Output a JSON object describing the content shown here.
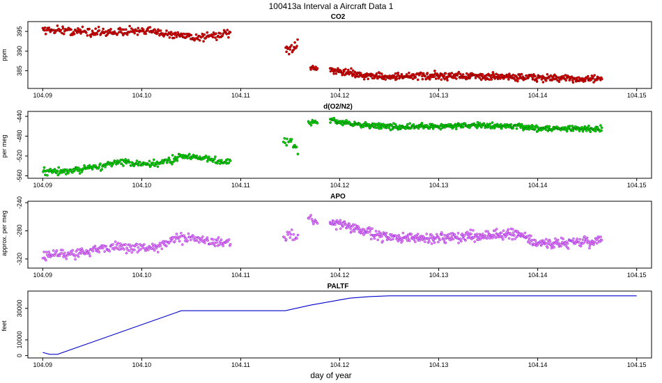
{
  "page_title": "100413a   Interval a Aircraft Data 1",
  "x_axis_label": "day of year",
  "chart_data": [
    {
      "type": "scatter",
      "title": "CO2",
      "ylabel": "ppm",
      "color": "#e00000",
      "edge_color": "#700000",
      "xlim": [
        104.0885,
        104.1515
      ],
      "ylim": [
        380.5,
        397.5
      ],
      "xticks": [
        104.09,
        104.1,
        104.11,
        104.12,
        104.13,
        104.14,
        104.15
      ],
      "xtick_labels": [
        "104.09",
        "104.10",
        "104.11",
        "104.12",
        "104.13",
        "104.14",
        "104.15"
      ],
      "yticks": [
        385,
        390,
        395
      ],
      "ytick_labels": [
        "385",
        "390",
        "395"
      ],
      "segments": [
        {
          "x": [
            104.09,
            104.093,
            104.096,
            104.099,
            104.102,
            104.104,
            104.106,
            104.108,
            104.109
          ],
          "y": [
            395.5,
            395.2,
            394.8,
            395.0,
            394.8,
            394.0,
            393.5,
            394.3,
            394.6
          ],
          "noise": 0.6,
          "n": 260
        },
        {
          "x": [
            104.1145,
            104.1152,
            104.1158
          ],
          "y": [
            389.8,
            390.5,
            392.0
          ],
          "noise": 0.5,
          "n": 18
        },
        {
          "x": [
            104.117,
            104.1178
          ],
          "y": [
            385.8,
            385.3
          ],
          "noise": 0.4,
          "n": 12
        },
        {
          "x": [
            104.119,
            104.121,
            104.122,
            104.124,
            104.13,
            104.138,
            104.144,
            104.1465
          ],
          "y": [
            385.0,
            384.6,
            383.9,
            383.5,
            383.7,
            383.4,
            382.9,
            382.8
          ],
          "noise": 0.5,
          "n": 480
        }
      ]
    },
    {
      "type": "scatter",
      "title": "d(O2/N2)",
      "ylabel": "per meg",
      "color": "#00e000",
      "edge_color": "#006000",
      "xlim": [
        104.0885,
        104.1515
      ],
      "ylim": [
        -565,
        -430
      ],
      "xticks": [
        104.09,
        104.1,
        104.11,
        104.12,
        104.13,
        104.14,
        104.15
      ],
      "xtick_labels": [
        "104.09",
        "104.10",
        "104.11",
        "104.12",
        "104.13",
        "104.14",
        "104.15"
      ],
      "yticks": [
        -560,
        -520,
        -480,
        -440
      ],
      "ytick_labels": [
        "-560",
        "-520",
        "-480",
        "-440"
      ],
      "segments": [
        {
          "x": [
            104.09,
            104.093,
            104.096,
            104.098,
            104.1,
            104.102,
            104.104,
            104.106,
            104.108,
            104.109
          ],
          "y": [
            -553,
            -550,
            -540,
            -532,
            -538,
            -535,
            -520,
            -522,
            -532,
            -528
          ],
          "noise": 4,
          "n": 260
        },
        {
          "x": [
            104.1143,
            104.115,
            104.1158
          ],
          "y": [
            -495,
            -490,
            -510
          ],
          "noise": 5,
          "n": 16
        },
        {
          "x": [
            104.1168,
            104.1178
          ],
          "y": [
            -450,
            -455
          ],
          "noise": 3,
          "n": 12
        },
        {
          "x": [
            104.119,
            104.121,
            104.126,
            104.133,
            104.138,
            104.14,
            104.1465
          ],
          "y": [
            -447,
            -455,
            -462,
            -458,
            -460,
            -464,
            -465
          ],
          "noise": 3,
          "n": 480
        }
      ]
    },
    {
      "type": "scatter",
      "title": "APO",
      "ylabel": "approx. per meg",
      "color": "#ee82ee",
      "edge_color": "#8a2be2",
      "xlim": [
        104.0885,
        104.1515
      ],
      "ylim": [
        -333,
        -238
      ],
      "xticks": [
        104.09,
        104.1,
        104.11,
        104.12,
        104.13,
        104.14,
        104.15
      ],
      "xtick_labels": [
        "104.09",
        "104.10",
        "104.11",
        "104.12",
        "104.13",
        "104.14",
        "104.15"
      ],
      "yticks": [
        -320,
        -280,
        -240
      ],
      "ytick_labels": [
        "-320",
        "-280",
        "-240"
      ],
      "segments": [
        {
          "x": [
            104.09,
            104.093,
            104.096,
            104.098,
            104.1,
            104.102,
            104.104,
            104.106,
            104.108,
            104.109
          ],
          "y": [
            -315,
            -313,
            -305,
            -302,
            -306,
            -300,
            -290,
            -290,
            -300,
            -295
          ],
          "noise": 4,
          "n": 260
        },
        {
          "x": [
            104.1143,
            104.115,
            104.1158
          ],
          "y": [
            -288,
            -285,
            -290
          ],
          "noise": 4,
          "n": 16
        },
        {
          "x": [
            104.1168,
            104.1178
          ],
          "y": [
            -262,
            -268
          ],
          "noise": 3,
          "n": 12
        },
        {
          "x": [
            104.119,
            104.121,
            104.125,
            104.13,
            104.138,
            104.14,
            104.1465
          ],
          "y": [
            -265,
            -275,
            -290,
            -290,
            -284,
            -298,
            -295
          ],
          "noise": 4,
          "n": 480
        }
      ]
    },
    {
      "type": "line",
      "title": "PALTF",
      "ylabel": "feet",
      "color": "#0000cc",
      "xlim": [
        104.0885,
        104.1515
      ],
      "ylim": [
        -1500,
        41000
      ],
      "xticks": [
        104.09,
        104.1,
        104.11,
        104.12,
        104.13,
        104.14,
        104.15
      ],
      "xtick_labels": [
        "104.09",
        "104.10",
        "104.11",
        "104.12",
        "104.13",
        "104.14",
        "104.15"
      ],
      "yticks": [
        0,
        10000,
        30000
      ],
      "ytick_labels": [
        "0",
        "10000",
        "30000"
      ],
      "x": [
        104.09,
        104.0907,
        104.0915,
        104.104,
        104.1145,
        104.117,
        104.121,
        104.123,
        104.125,
        104.15
      ],
      "y": [
        2000,
        800,
        800,
        28500,
        28500,
        32000,
        36500,
        37500,
        38000,
        38000
      ]
    }
  ]
}
